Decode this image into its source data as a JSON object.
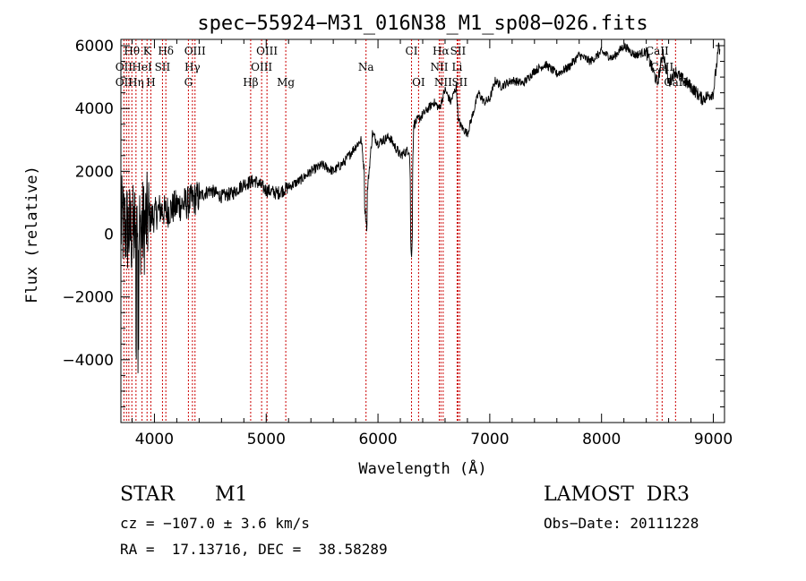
{
  "chart_data": {
    "type": "line",
    "title": "spec−55924−M31_016N38_M1_sp08−026.fits",
    "xlabel": "Wavelength (Å)",
    "ylabel": "Flux (relative)",
    "xlim": [
      3700,
      9100
    ],
    "ylim": [
      -6000,
      6200
    ],
    "xticks": [
      4000,
      5000,
      6000,
      7000,
      8000,
      9000
    ],
    "yticks": [
      -4000,
      -2000,
      0,
      2000,
      4000,
      6000
    ],
    "ytick_labels": [
      "−4000",
      "−2000",
      "0",
      "2000",
      "4000",
      "6000"
    ],
    "series": [
      {
        "name": "flux",
        "x": [
          3700,
          3750,
          3800,
          3850,
          3900,
          3950,
          4000,
          4050,
          4100,
          4200,
          4300,
          4400,
          4500,
          4600,
          4700,
          4800,
          4900,
          5000,
          5100,
          5200,
          5300,
          5400,
          5500,
          5600,
          5700,
          5800,
          5850,
          5900,
          5950,
          6000,
          6100,
          6200,
          6280,
          6300,
          6320,
          6400,
          6500,
          6550,
          6600,
          6650,
          6700,
          6720,
          6750,
          6800,
          6900,
          6950,
          7000,
          7050,
          7100,
          7200,
          7300,
          7400,
          7500,
          7600,
          7700,
          7800,
          7900,
          8000,
          8100,
          8200,
          8300,
          8400,
          8500,
          8550,
          8600,
          8660,
          8700,
          8800,
          8900,
          9000,
          9050,
          9100
        ],
        "y": [
          300,
          200,
          0,
          300,
          200,
          500,
          600,
          800,
          700,
          900,
          1000,
          1200,
          1400,
          1200,
          1300,
          1600,
          1700,
          1400,
          1300,
          1500,
          1700,
          2000,
          2200,
          2000,
          2300,
          2800,
          3000,
          1200,
          3200,
          2900,
          3100,
          2500,
          2700,
          700,
          3500,
          3800,
          4200,
          4000,
          4600,
          4200,
          4700,
          3600,
          3400,
          3200,
          4500,
          4200,
          4300,
          4900,
          4700,
          4900,
          4800,
          5200,
          5400,
          5100,
          5300,
          5700,
          5500,
          5800,
          5600,
          6000,
          5700,
          5800,
          4800,
          5800,
          4800,
          5200,
          5000,
          4700,
          4300,
          4500,
          6000,
          4200
        ]
      }
    ],
    "line_labels": [
      {
        "text": "Hθ",
        "x": 3798
      },
      {
        "text": "K",
        "x": 3934
      },
      {
        "text": "Hδ",
        "x": 4102
      },
      {
        "text": "OIII",
        "x": 4363
      },
      {
        "text": "OIII",
        "x": 5007
      },
      {
        "text": "CI",
        "x": 6300
      },
      {
        "text": "Hα",
        "x": 6563
      },
      {
        "text": "SII",
        "x": 6716
      },
      {
        "text": "CaII",
        "x": 8498
      },
      {
        "text": "OII",
        "x": 3727
      },
      {
        "text": "HeI",
        "x": 3889
      },
      {
        "text": "SII",
        "x": 4072
      },
      {
        "text": "Hγ",
        "x": 4340
      },
      {
        "text": "OIII",
        "x": 4959
      },
      {
        "text": "Na",
        "x": 5893
      },
      {
        "text": "NII",
        "x": 6548
      },
      {
        "text": "Li",
        "x": 6708
      },
      {
        "text": "CaII",
        "x": 8542
      },
      {
        "text": "OII",
        "x": 3727
      },
      {
        "text": "Hη",
        "x": 3835
      },
      {
        "text": "H",
        "x": 3968
      },
      {
        "text": "G",
        "x": 4304
      },
      {
        "text": "Hβ",
        "x": 4861
      },
      {
        "text": "Mg",
        "x": 5175
      },
      {
        "text": "OI",
        "x": 6363
      },
      {
        "text": "NII",
        "x": 6583
      },
      {
        "text": "SII",
        "x": 6731
      },
      {
        "text": "CaII",
        "x": 8662
      }
    ],
    "line_marks_x": [
      3727,
      3750,
      3771,
      3798,
      3835,
      3889,
      3934,
      3968,
      4072,
      4102,
      4304,
      4340,
      4363,
      4861,
      4959,
      5007,
      5175,
      5893,
      6300,
      6363,
      6548,
      6563,
      6583,
      6708,
      6716,
      6731,
      8498,
      8542,
      8662
    ],
    "marker_color": "#cc0000"
  },
  "info": {
    "object_class": "STAR",
    "subclass": "M1",
    "survey": "LAMOST  DR3",
    "cz": "cz = −107.0 ± 3.6 km/s",
    "obs_date": "Obs−Date: 20111228",
    "coords": "RA =  17.13716, DEC =  38.58289"
  }
}
